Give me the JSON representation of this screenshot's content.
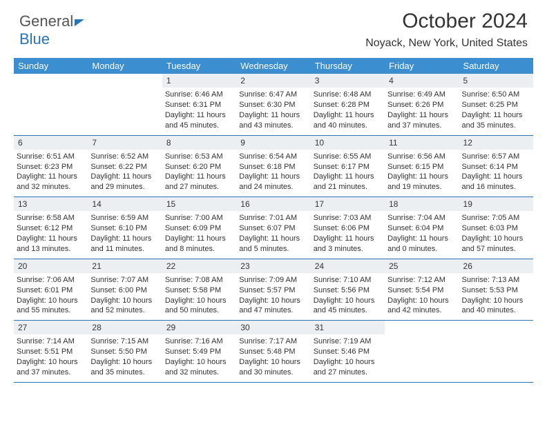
{
  "logo": {
    "part1": "General",
    "part2": "Blue"
  },
  "title": "October 2024",
  "location": "Noyack, New York, United States",
  "colors": {
    "header_bg": "#3b8fd1",
    "header_text": "#ffffff",
    "border": "#2874b8",
    "daynum_bg": "#eceff1",
    "text": "#333333"
  },
  "dayNames": [
    "Sunday",
    "Monday",
    "Tuesday",
    "Wednesday",
    "Thursday",
    "Friday",
    "Saturday"
  ],
  "weeks": [
    [
      null,
      null,
      {
        "n": "1",
        "sr": "6:46 AM",
        "ss": "6:31 PM",
        "dl": "11 hours and 45 minutes."
      },
      {
        "n": "2",
        "sr": "6:47 AM",
        "ss": "6:30 PM",
        "dl": "11 hours and 43 minutes."
      },
      {
        "n": "3",
        "sr": "6:48 AM",
        "ss": "6:28 PM",
        "dl": "11 hours and 40 minutes."
      },
      {
        "n": "4",
        "sr": "6:49 AM",
        "ss": "6:26 PM",
        "dl": "11 hours and 37 minutes."
      },
      {
        "n": "5",
        "sr": "6:50 AM",
        "ss": "6:25 PM",
        "dl": "11 hours and 35 minutes."
      }
    ],
    [
      {
        "n": "6",
        "sr": "6:51 AM",
        "ss": "6:23 PM",
        "dl": "11 hours and 32 minutes."
      },
      {
        "n": "7",
        "sr": "6:52 AM",
        "ss": "6:22 PM",
        "dl": "11 hours and 29 minutes."
      },
      {
        "n": "8",
        "sr": "6:53 AM",
        "ss": "6:20 PM",
        "dl": "11 hours and 27 minutes."
      },
      {
        "n": "9",
        "sr": "6:54 AM",
        "ss": "6:18 PM",
        "dl": "11 hours and 24 minutes."
      },
      {
        "n": "10",
        "sr": "6:55 AM",
        "ss": "6:17 PM",
        "dl": "11 hours and 21 minutes."
      },
      {
        "n": "11",
        "sr": "6:56 AM",
        "ss": "6:15 PM",
        "dl": "11 hours and 19 minutes."
      },
      {
        "n": "12",
        "sr": "6:57 AM",
        "ss": "6:14 PM",
        "dl": "11 hours and 16 minutes."
      }
    ],
    [
      {
        "n": "13",
        "sr": "6:58 AM",
        "ss": "6:12 PM",
        "dl": "11 hours and 13 minutes."
      },
      {
        "n": "14",
        "sr": "6:59 AM",
        "ss": "6:10 PM",
        "dl": "11 hours and 11 minutes."
      },
      {
        "n": "15",
        "sr": "7:00 AM",
        "ss": "6:09 PM",
        "dl": "11 hours and 8 minutes."
      },
      {
        "n": "16",
        "sr": "7:01 AM",
        "ss": "6:07 PM",
        "dl": "11 hours and 5 minutes."
      },
      {
        "n": "17",
        "sr": "7:03 AM",
        "ss": "6:06 PM",
        "dl": "11 hours and 3 minutes."
      },
      {
        "n": "18",
        "sr": "7:04 AM",
        "ss": "6:04 PM",
        "dl": "11 hours and 0 minutes."
      },
      {
        "n": "19",
        "sr": "7:05 AM",
        "ss": "6:03 PM",
        "dl": "10 hours and 57 minutes."
      }
    ],
    [
      {
        "n": "20",
        "sr": "7:06 AM",
        "ss": "6:01 PM",
        "dl": "10 hours and 55 minutes."
      },
      {
        "n": "21",
        "sr": "7:07 AM",
        "ss": "6:00 PM",
        "dl": "10 hours and 52 minutes."
      },
      {
        "n": "22",
        "sr": "7:08 AM",
        "ss": "5:58 PM",
        "dl": "10 hours and 50 minutes."
      },
      {
        "n": "23",
        "sr": "7:09 AM",
        "ss": "5:57 PM",
        "dl": "10 hours and 47 minutes."
      },
      {
        "n": "24",
        "sr": "7:10 AM",
        "ss": "5:56 PM",
        "dl": "10 hours and 45 minutes."
      },
      {
        "n": "25",
        "sr": "7:12 AM",
        "ss": "5:54 PM",
        "dl": "10 hours and 42 minutes."
      },
      {
        "n": "26",
        "sr": "7:13 AM",
        "ss": "5:53 PM",
        "dl": "10 hours and 40 minutes."
      }
    ],
    [
      {
        "n": "27",
        "sr": "7:14 AM",
        "ss": "5:51 PM",
        "dl": "10 hours and 37 minutes."
      },
      {
        "n": "28",
        "sr": "7:15 AM",
        "ss": "5:50 PM",
        "dl": "10 hours and 35 minutes."
      },
      {
        "n": "29",
        "sr": "7:16 AM",
        "ss": "5:49 PM",
        "dl": "10 hours and 32 minutes."
      },
      {
        "n": "30",
        "sr": "7:17 AM",
        "ss": "5:48 PM",
        "dl": "10 hours and 30 minutes."
      },
      {
        "n": "31",
        "sr": "7:19 AM",
        "ss": "5:46 PM",
        "dl": "10 hours and 27 minutes."
      },
      null,
      null
    ]
  ],
  "labels": {
    "sunrise": "Sunrise: ",
    "sunset": "Sunset: ",
    "daylight": "Daylight: "
  }
}
